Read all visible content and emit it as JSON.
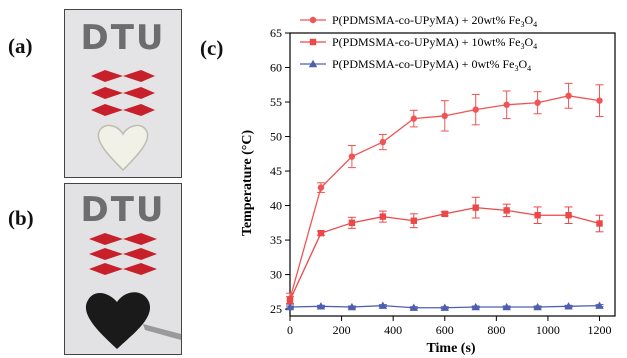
{
  "panels": {
    "a": "(a)",
    "b": "(b)",
    "c": "(c)"
  },
  "photo_a": {
    "logo_text": "DTU",
    "background": "#e4e4e6",
    "diamond_color": "#c8202a",
    "heart_fill": "#f1f1e8"
  },
  "photo_b": {
    "logo_text": "DTU",
    "background": "#e2e2e4",
    "diamond_color": "#c8202a",
    "heart_fill": "#1a1a1a"
  },
  "chart_data": {
    "type": "line",
    "xlabel": "Time (s)",
    "ylabel": "Temperature (°C)",
    "xlim": [
      0,
      1260
    ],
    "ylim": [
      24,
      65
    ],
    "xticks": [
      0,
      200,
      400,
      600,
      800,
      1000,
      1200
    ],
    "yticks": [
      25,
      30,
      35,
      40,
      45,
      50,
      55,
      60,
      65
    ],
    "legend_position": "top-left",
    "grid": false,
    "series": [
      {
        "name_prefix": "P(PDMSMA-co-UPyMA) + 20wt% Fe",
        "sub": "3",
        "mid": "O",
        "sub2": "4",
        "marker": "circle",
        "color": "#f05555",
        "x": [
          0,
          120,
          240,
          360,
          480,
          600,
          720,
          840,
          960,
          1080,
          1200
        ],
        "y": [
          26.5,
          42.6,
          47.1,
          49.2,
          52.6,
          53.0,
          53.9,
          54.6,
          54.9,
          55.9,
          55.2
        ],
        "err": [
          0.8,
          0.7,
          1.6,
          1.1,
          1.2,
          2.2,
          2.2,
          2.0,
          1.6,
          1.8,
          2.3
        ]
      },
      {
        "name_prefix": "P(PDMSMA-co-UPyMA) + 10wt% Fe",
        "sub": "3",
        "mid": "O",
        "sub2": "4",
        "marker": "square",
        "color": "#ec4848",
        "x": [
          0,
          120,
          240,
          360,
          480,
          600,
          720,
          840,
          960,
          1080,
          1200
        ],
        "y": [
          26.3,
          36.0,
          37.5,
          38.4,
          37.8,
          38.8,
          39.7,
          39.3,
          38.6,
          38.6,
          37.4
        ],
        "err": [
          0.5,
          0.3,
          0.8,
          0.8,
          1.0,
          0.3,
          1.5,
          0.9,
          1.2,
          1.2,
          1.2
        ]
      },
      {
        "name_prefix": "P(PDMSMA-co-UPyMA) + 0wt% Fe",
        "sub": "3",
        "mid": "O",
        "sub2": "4",
        "marker": "triangle",
        "color": "#4f5fb0",
        "x": [
          0,
          120,
          240,
          360,
          480,
          600,
          720,
          840,
          960,
          1080,
          1200
        ],
        "y": [
          25.3,
          25.4,
          25.3,
          25.5,
          25.2,
          25.2,
          25.3,
          25.3,
          25.3,
          25.4,
          25.5
        ],
        "err": [
          0.15,
          0.15,
          0.15,
          0.15,
          0.15,
          0.15,
          0.15,
          0.15,
          0.15,
          0.15,
          0.15
        ]
      }
    ]
  }
}
